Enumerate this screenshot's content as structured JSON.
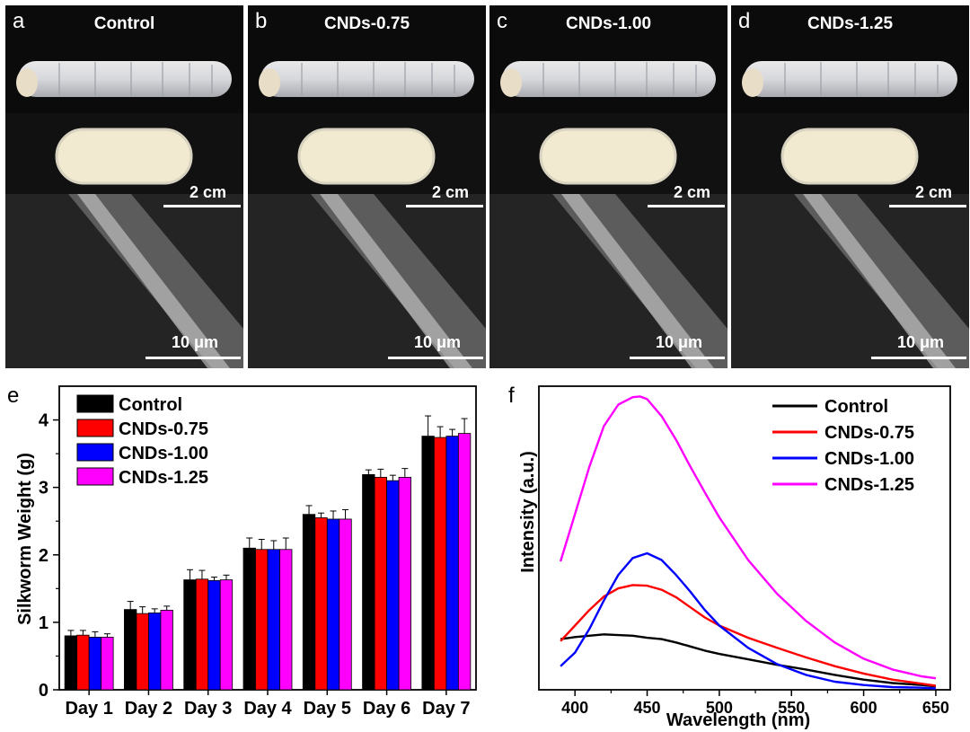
{
  "panels": [
    {
      "letter": "a",
      "title": "Control",
      "scale_top": "2 cm",
      "scale_bottom": "10 μm"
    },
    {
      "letter": "b",
      "title": "CNDs-0.75",
      "scale_top": "2 cm",
      "scale_bottom": "10 μm"
    },
    {
      "letter": "c",
      "title": "CNDs-1.00",
      "scale_top": "2 cm",
      "scale_bottom": "10 μm"
    },
    {
      "letter": "d",
      "title": "CNDs-1.25",
      "scale_top": "2 cm",
      "scale_bottom": "10 μm"
    }
  ],
  "colors": {
    "control": "#000000",
    "cnds075": "#ff0000",
    "cnds100": "#0000ff",
    "cnds125": "#ff00ff"
  },
  "chart_data": [
    {
      "type": "bar",
      "panel_letter": "e",
      "ylabel": "Silkworm Weight (g)",
      "xlabel": "",
      "ylim": [
        0,
        4.5
      ],
      "yticks": [
        "0",
        "1",
        "2",
        "3",
        "4"
      ],
      "categories": [
        "Day 1",
        "Day 2",
        "Day 3",
        "Day 4",
        "Day 5",
        "Day 6",
        "Day 7"
      ],
      "legend_position": "top-left",
      "series": [
        {
          "name": "Control",
          "values": [
            0.8,
            1.19,
            1.63,
            2.1,
            2.6,
            3.19,
            3.76
          ],
          "errors": [
            0.08,
            0.12,
            0.15,
            0.15,
            0.13,
            0.07,
            0.3
          ]
        },
        {
          "name": "CNDs-0.75",
          "values": [
            0.81,
            1.13,
            1.64,
            2.08,
            2.55,
            3.15,
            3.74
          ],
          "errors": [
            0.07,
            0.1,
            0.13,
            0.15,
            0.07,
            0.12,
            0.16
          ]
        },
        {
          "name": "CNDs-1.00",
          "values": [
            0.78,
            1.14,
            1.62,
            2.08,
            2.53,
            3.1,
            3.76
          ],
          "errors": [
            0.08,
            0.06,
            0.05,
            0.13,
            0.12,
            0.08,
            0.1
          ]
        },
        {
          "name": "CNDs-1.25",
          "values": [
            0.78,
            1.18,
            1.63,
            2.08,
            2.53,
            3.15,
            3.8
          ],
          "errors": [
            0.05,
            0.06,
            0.07,
            0.17,
            0.14,
            0.13,
            0.22
          ]
        }
      ]
    },
    {
      "type": "line",
      "panel_letter": "f",
      "ylabel": "Intensity (a.u.)",
      "xlabel": "Wavelength (nm)",
      "xlim": [
        375,
        660
      ],
      "xticks": [
        "400",
        "450",
        "500",
        "550",
        "600",
        "650"
      ],
      "legend_position": "top-right",
      "series": [
        {
          "name": "Control",
          "x": [
            390,
            400,
            410,
            420,
            430,
            440,
            450,
            460,
            470,
            480,
            490,
            500,
            520,
            540,
            560,
            580,
            600,
            620,
            640,
            650
          ],
          "y": [
            0.75,
            0.78,
            0.8,
            0.82,
            0.81,
            0.8,
            0.77,
            0.75,
            0.7,
            0.64,
            0.58,
            0.53,
            0.45,
            0.37,
            0.3,
            0.22,
            0.15,
            0.1,
            0.07,
            0.05
          ]
        },
        {
          "name": "CNDs-0.75",
          "x": [
            390,
            400,
            410,
            420,
            430,
            440,
            450,
            460,
            470,
            480,
            490,
            500,
            520,
            540,
            560,
            580,
            600,
            620,
            640,
            650
          ],
          "y": [
            0.72,
            0.95,
            1.18,
            1.38,
            1.5,
            1.55,
            1.54,
            1.48,
            1.37,
            1.22,
            1.07,
            0.95,
            0.77,
            0.62,
            0.48,
            0.35,
            0.24,
            0.15,
            0.09,
            0.06
          ]
        },
        {
          "name": "CNDs-1.00",
          "x": [
            390,
            400,
            410,
            420,
            430,
            440,
            450,
            460,
            470,
            480,
            490,
            500,
            520,
            540,
            560,
            580,
            600,
            620,
            640,
            650
          ],
          "y": [
            0.35,
            0.55,
            0.9,
            1.32,
            1.7,
            1.95,
            2.02,
            1.92,
            1.7,
            1.45,
            1.18,
            0.95,
            0.62,
            0.38,
            0.22,
            0.12,
            0.07,
            0.04,
            0.03,
            0.02
          ]
        },
        {
          "name": "CNDs-1.25",
          "x": [
            390,
            400,
            410,
            420,
            430,
            440,
            445,
            450,
            460,
            470,
            480,
            490,
            500,
            520,
            540,
            560,
            580,
            600,
            620,
            640,
            650
          ],
          "y": [
            1.9,
            2.6,
            3.3,
            3.9,
            4.22,
            4.33,
            4.34,
            4.3,
            4.05,
            3.7,
            3.3,
            2.92,
            2.55,
            1.92,
            1.42,
            1.02,
            0.7,
            0.46,
            0.3,
            0.2,
            0.17
          ]
        }
      ]
    }
  ]
}
